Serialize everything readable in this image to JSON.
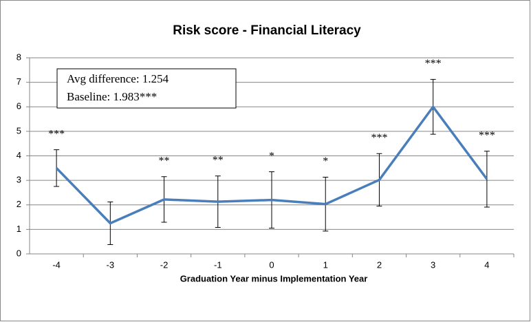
{
  "chart_data": {
    "type": "line",
    "title": "Risk score - Financial Literacy",
    "x_label": "Graduation  Year minus Implementation Year",
    "categories": [
      "-4",
      "-3",
      "-2",
      "-1",
      "0",
      "1",
      "2",
      "3",
      "4"
    ],
    "series": [
      {
        "color": "#4a7ebb",
        "values": [
          3.5,
          1.25,
          2.22,
          2.13,
          2.2,
          2.03,
          3.02,
          6.0,
          3.05
        ],
        "errors": [
          0.75,
          0.87,
          0.93,
          1.05,
          1.15,
          1.1,
          1.07,
          1.12,
          1.14
        ]
      }
    ],
    "annotations": [
      "***",
      null,
      "**",
      "**",
      "*",
      "*",
      "***",
      "***",
      "***"
    ],
    "text_box": [
      "Avg difference:  1.254",
      "Baseline:  1.983***"
    ],
    "ylim": [
      0,
      8
    ],
    "yticks": [
      0,
      1,
      2,
      3,
      4,
      5,
      6,
      7,
      8
    ],
    "grid": true
  }
}
